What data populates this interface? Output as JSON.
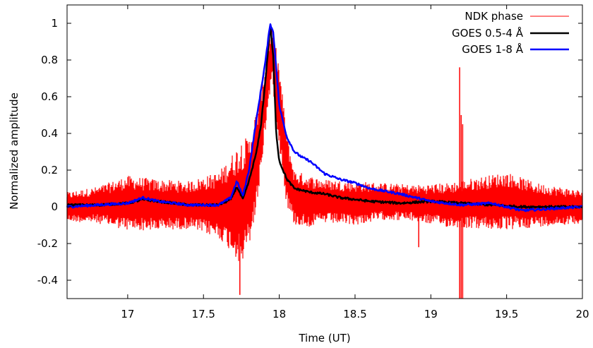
{
  "chart_data": {
    "type": "line",
    "xlabel": "Time (UT)",
    "ylabel": "Normalized amplitude",
    "xlim": [
      16.6,
      20.0
    ],
    "ylim": [
      -0.5,
      1.1
    ],
    "xticks": [
      17,
      17.5,
      18,
      18.5,
      19,
      19.5,
      20
    ],
    "xtick_labels": [
      "17",
      "17.5",
      "18",
      "18.5",
      "19",
      "19.5",
      "20"
    ],
    "yticks": [
      -0.4,
      -0.2,
      0,
      0.2,
      0.4,
      0.6,
      0.8,
      1
    ],
    "ytick_labels": [
      "-0.4",
      "-0.2",
      "0",
      "0.2",
      "0.4",
      "0.6",
      "0.8",
      "1"
    ],
    "grid": false,
    "legend_position": "top-right",
    "series": [
      {
        "name": "NDK phase",
        "color": "#ff0000",
        "style": "noisy",
        "x": [
          16.6,
          16.8,
          17.0,
          17.2,
          17.4,
          17.6,
          17.7,
          17.75,
          17.8,
          17.85,
          17.9,
          17.95,
          18.0,
          18.05,
          18.1,
          18.2,
          18.3,
          18.5,
          18.7,
          18.9,
          19.1,
          19.3,
          19.5,
          19.7,
          20.0
        ],
        "center": [
          0.0,
          0.01,
          0.02,
          0.01,
          0.01,
          0.01,
          0.02,
          0.02,
          0.08,
          0.25,
          0.55,
          0.85,
          0.55,
          0.2,
          0.05,
          0.03,
          0.03,
          0.02,
          0.03,
          0.02,
          0.01,
          0.02,
          0.03,
          0.01,
          0.0
        ],
        "amp": [
          0.08,
          0.1,
          0.15,
          0.14,
          0.13,
          0.18,
          0.28,
          0.35,
          0.3,
          0.28,
          0.2,
          0.15,
          0.22,
          0.2,
          0.15,
          0.14,
          0.12,
          0.12,
          0.1,
          0.1,
          0.12,
          0.14,
          0.16,
          0.12,
          0.09
        ],
        "spikes": [
          {
            "x": 17.74,
            "min": -0.48,
            "max": 0.2
          },
          {
            "x": 18.92,
            "min": -0.22,
            "max": 0.1
          },
          {
            "x": 19.19,
            "min": -0.5,
            "max": 0.76
          },
          {
            "x": 19.2,
            "min": -0.5,
            "max": 0.5
          },
          {
            "x": 19.21,
            "min": -0.5,
            "max": 0.45
          }
        ]
      },
      {
        "name": "GOES 0.5-4 Å",
        "color": "#000000",
        "x": [
          16.6,
          16.8,
          17.0,
          17.1,
          17.2,
          17.4,
          17.6,
          17.68,
          17.72,
          17.76,
          17.8,
          17.85,
          17.88,
          17.91,
          17.94,
          17.96,
          17.98,
          18.0,
          18.05,
          18.1,
          18.2,
          18.3,
          18.4,
          18.5,
          18.6,
          18.8,
          19.0,
          19.2,
          19.4,
          19.6,
          19.8,
          20.0
        ],
        "y": [
          0.01,
          0.01,
          0.02,
          0.04,
          0.03,
          0.01,
          0.01,
          0.04,
          0.11,
          0.04,
          0.14,
          0.3,
          0.45,
          0.7,
          0.99,
          0.82,
          0.4,
          0.25,
          0.15,
          0.1,
          0.08,
          0.07,
          0.05,
          0.04,
          0.03,
          0.02,
          0.03,
          0.02,
          0.01,
          0.0,
          0.0,
          0.0
        ]
      },
      {
        "name": "GOES 1-8 Å",
        "color": "#0000ff",
        "x": [
          16.6,
          16.8,
          17.0,
          17.1,
          17.2,
          17.4,
          17.6,
          17.68,
          17.72,
          17.76,
          17.8,
          17.85,
          17.88,
          17.91,
          17.94,
          17.96,
          17.98,
          18.0,
          18.05,
          18.1,
          18.15,
          18.2,
          18.3,
          18.4,
          18.5,
          18.6,
          18.8,
          19.0,
          19.2,
          19.4,
          19.6,
          19.8,
          20.0
        ],
        "y": [
          0.0,
          0.01,
          0.02,
          0.05,
          0.03,
          0.01,
          0.01,
          0.05,
          0.14,
          0.06,
          0.2,
          0.48,
          0.64,
          0.8,
          1.0,
          0.95,
          0.76,
          0.55,
          0.38,
          0.3,
          0.27,
          0.25,
          0.18,
          0.15,
          0.13,
          0.1,
          0.07,
          0.03,
          0.01,
          0.02,
          -0.02,
          -0.01,
          0.0
        ]
      }
    ]
  }
}
